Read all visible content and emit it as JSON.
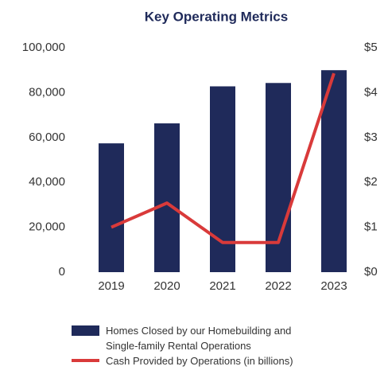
{
  "chart_data": {
    "type": "bar-line",
    "title": "Key Operating Metrics",
    "categories": [
      "2019",
      "2020",
      "2021",
      "2022",
      "2023"
    ],
    "series": [
      {
        "name": "Homes Closed by our Homebuilding and Single-family Rental Operations",
        "type": "bar",
        "color": "#1f2a5a",
        "values": [
          57400,
          66300,
          82800,
          84300,
          90000
        ]
      },
      {
        "name": "Cash Provided by Operations (in billions)",
        "type": "line",
        "axis": "y2",
        "color": "#d93a3a",
        "values": [
          1.0,
          1.54,
          0.66,
          0.66,
          4.43
        ]
      }
    ],
    "ylim": [
      0,
      100000
    ],
    "yticks": [
      0,
      {
        "value": 20000,
        "label": "20,000"
      },
      {
        "value": 40000,
        "label": "40,000"
      },
      {
        "value": 60000,
        "label": "60,000"
      },
      {
        "value": 80000,
        "label": "80,000"
      },
      {
        "value": 100000,
        "label": "100,000"
      }
    ],
    "y2lim": [
      0,
      5
    ],
    "y2ticks": [
      {
        "value": 0,
        "label": "$0"
      },
      {
        "value": 1,
        "label": "$1"
      },
      {
        "value": 2,
        "label": "$2"
      },
      {
        "value": 3,
        "label": "$3"
      },
      {
        "value": 4,
        "label": "$4"
      },
      {
        "value": 5,
        "label": "$5"
      }
    ],
    "grid": false
  }
}
